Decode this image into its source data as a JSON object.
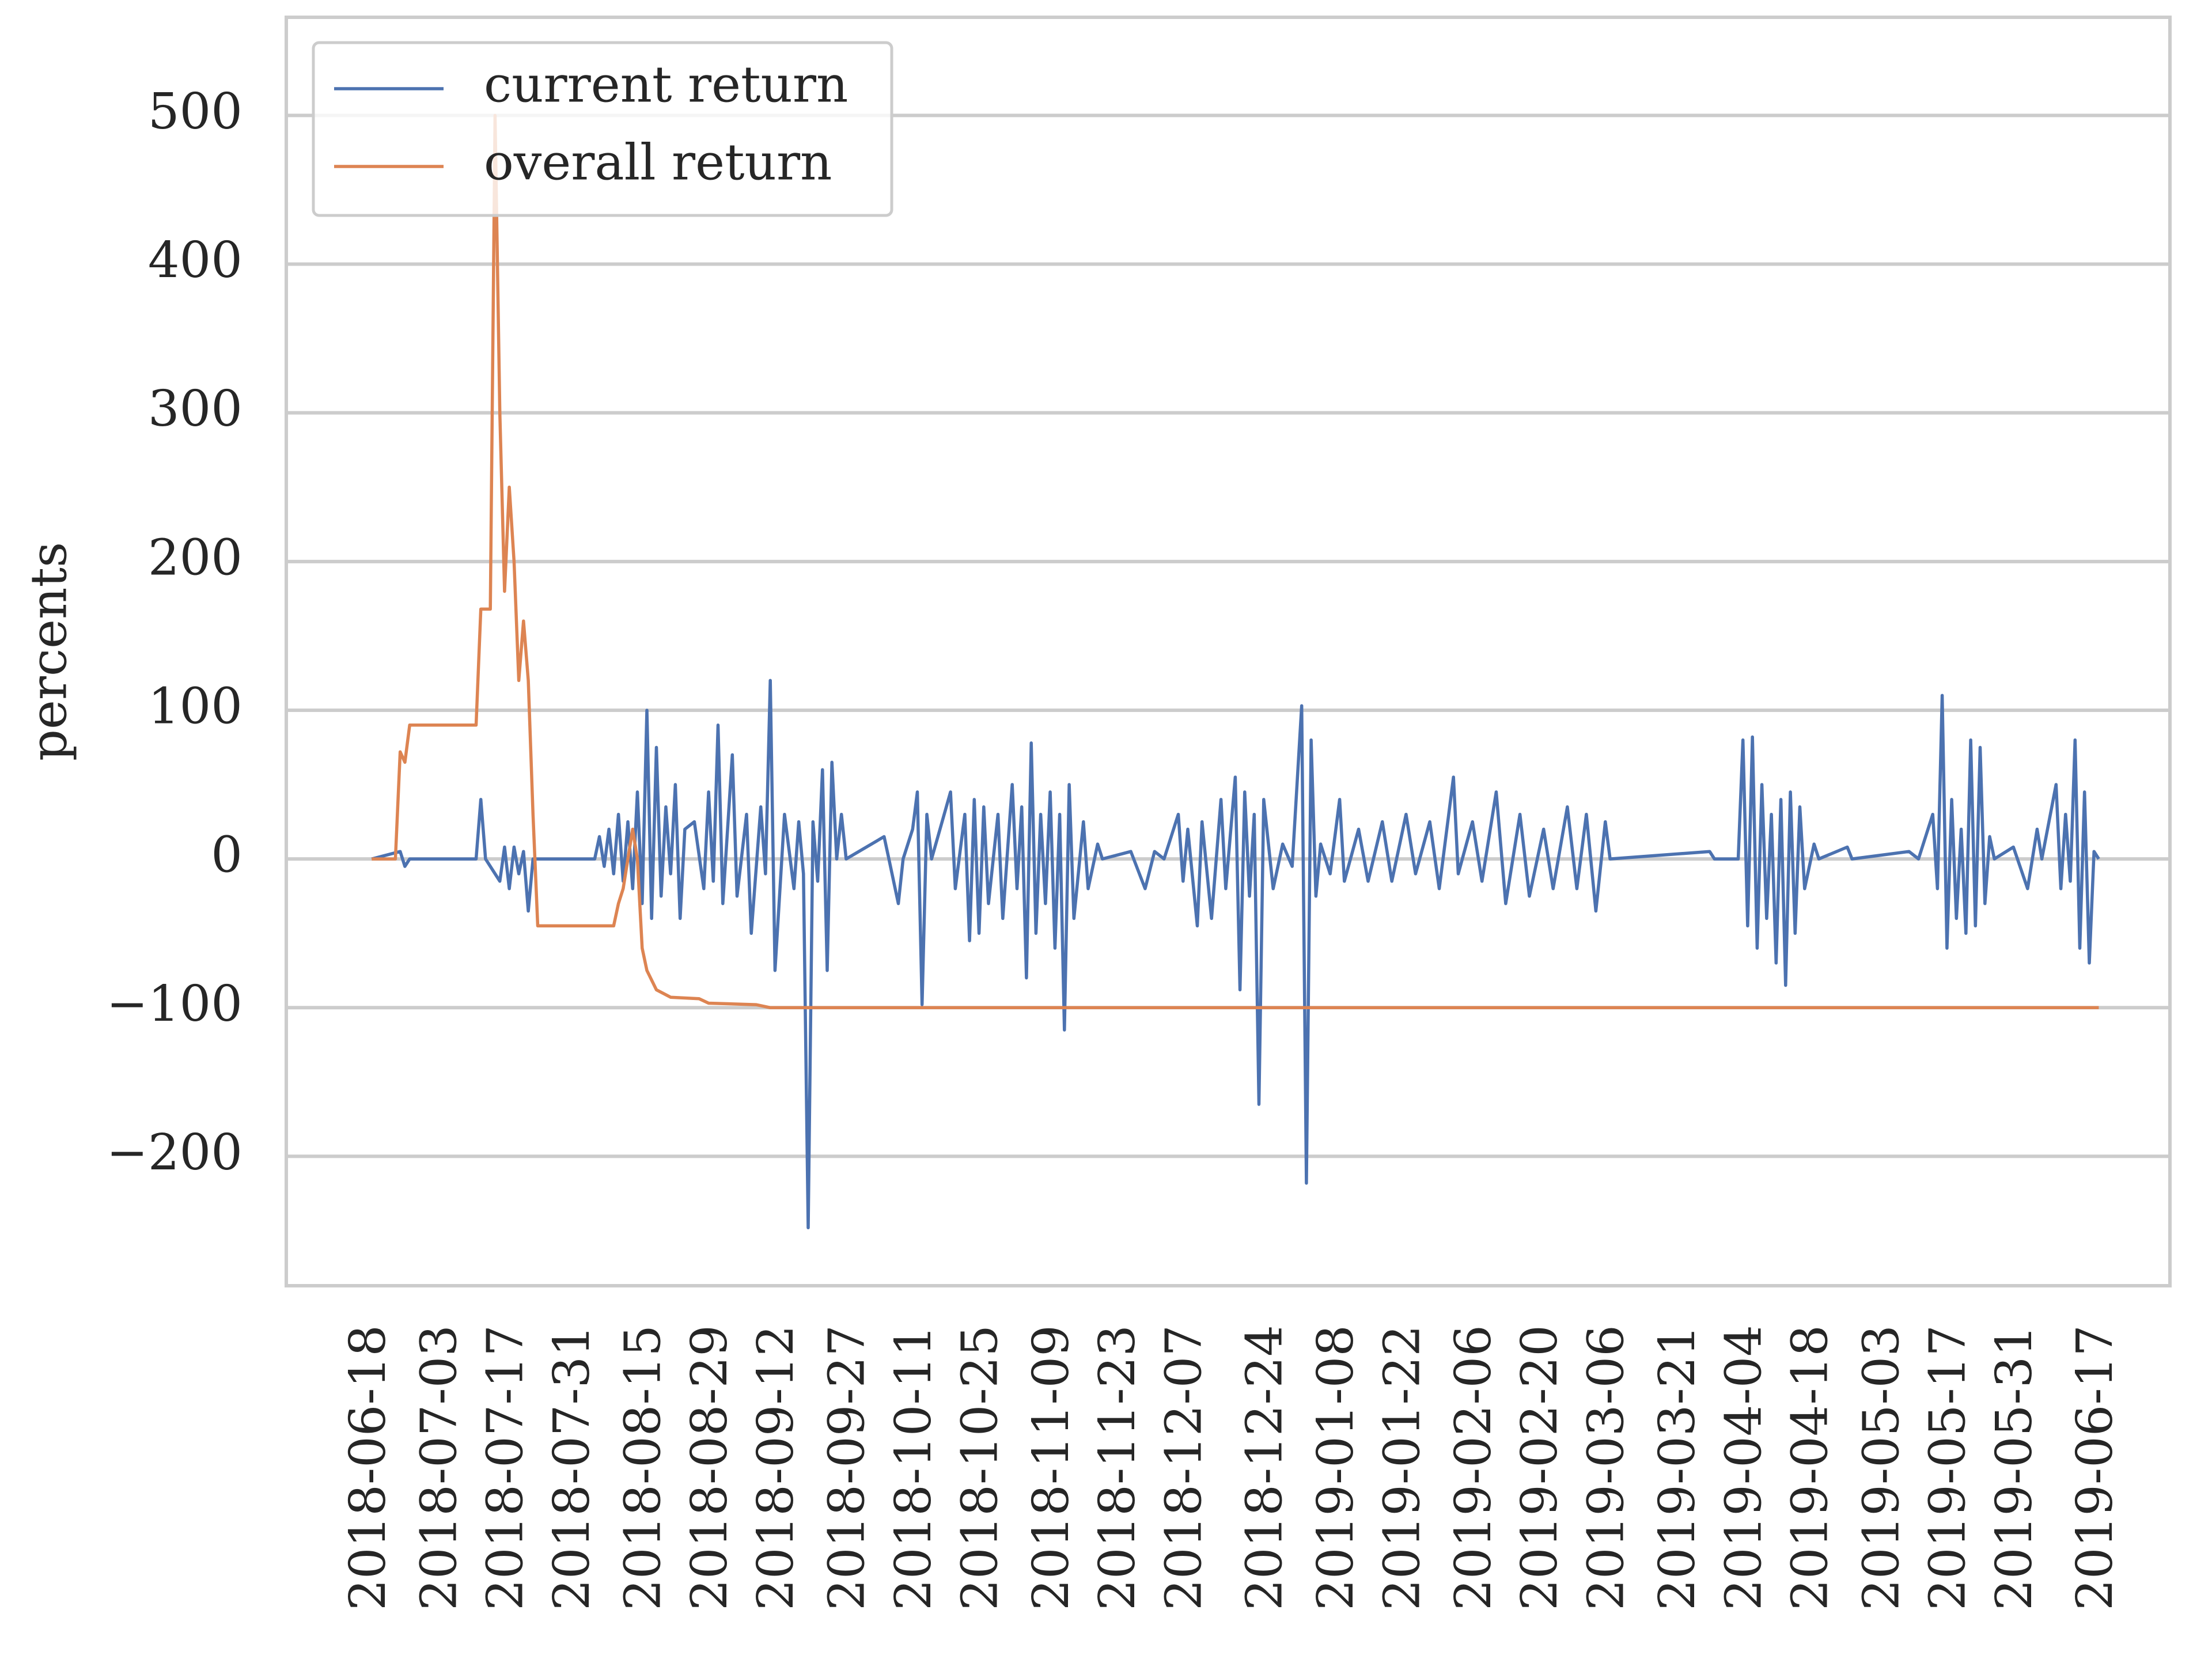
{
  "chart_data": {
    "type": "line",
    "ylabel": "percents",
    "legend": "upper left",
    "grid": "y",
    "xlim": [
      "2018-05-31",
      "2019-07-02"
    ],
    "ylim": [
      -287,
      566
    ],
    "yticks": [
      {
        "value": -200,
        "label": "−200"
      },
      {
        "value": -100,
        "label": "−100"
      },
      0,
      100,
      200,
      300,
      400,
      500
    ],
    "xticks": [
      "2018-06-18",
      "2018-07-03",
      "2018-07-17",
      "2018-07-31",
      "2018-08-15",
      "2018-08-29",
      "2018-09-12",
      "2018-09-27",
      "2018-10-11",
      "2018-10-25",
      "2018-11-09",
      "2018-11-23",
      "2018-12-07",
      "2018-12-24",
      "2019-01-08",
      "2019-01-22",
      "2019-02-06",
      "2019-02-20",
      "2019-03-06",
      "2019-03-21",
      "2019-04-04",
      "2019-04-18",
      "2019-05-03",
      "2019-05-17",
      "2019-05-31",
      "2019-06-17"
    ],
    "series": [
      {
        "name": "current return",
        "color": "#4c72b0",
        "x": [
          "2018-06-18",
          "2018-06-24",
          "2018-06-25",
          "2018-06-26",
          "2018-07-10",
          "2018-07-11",
          "2018-07-12",
          "2018-07-15",
          "2018-07-16",
          "2018-07-17",
          "2018-07-18",
          "2018-07-19",
          "2018-07-20",
          "2018-07-21",
          "2018-07-22",
          "2018-08-04",
          "2018-08-05",
          "2018-08-06",
          "2018-08-07",
          "2018-08-08",
          "2018-08-09",
          "2018-08-10",
          "2018-08-11",
          "2018-08-12",
          "2018-08-13",
          "2018-08-14",
          "2018-08-15",
          "2018-08-16",
          "2018-08-17",
          "2018-08-18",
          "2018-08-19",
          "2018-08-20",
          "2018-08-21",
          "2018-08-22",
          "2018-08-23",
          "2018-08-25",
          "2018-08-27",
          "2018-08-28",
          "2018-08-29",
          "2018-08-30",
          "2018-08-31",
          "2018-09-02",
          "2018-09-03",
          "2018-09-05",
          "2018-09-06",
          "2018-09-08",
          "2018-09-09",
          "2018-09-10",
          "2018-09-11",
          "2018-09-13",
          "2018-09-15",
          "2018-09-16",
          "2018-09-17",
          "2018-09-18",
          "2018-09-19",
          "2018-09-20",
          "2018-09-21",
          "2018-09-22",
          "2018-09-23",
          "2018-09-24",
          "2018-09-25",
          "2018-09-26",
          "2018-10-04",
          "2018-10-05",
          "2018-10-07",
          "2018-10-08",
          "2018-10-10",
          "2018-10-11",
          "2018-10-12",
          "2018-10-13",
          "2018-10-14",
          "2018-10-18",
          "2018-10-19",
          "2018-10-21",
          "2018-10-22",
          "2018-10-23",
          "2018-10-24",
          "2018-10-25",
          "2018-10-26",
          "2018-10-28",
          "2018-10-29",
          "2018-10-31",
          "2018-11-01",
          "2018-11-02",
          "2018-11-03",
          "2018-11-04",
          "2018-11-05",
          "2018-11-06",
          "2018-11-07",
          "2018-11-08",
          "2018-11-09",
          "2018-11-10",
          "2018-11-11",
          "2018-11-12",
          "2018-11-13",
          "2018-11-15",
          "2018-11-16",
          "2018-11-18",
          "2018-11-19",
          "2018-11-25",
          "2018-11-28",
          "2018-11-30",
          "2018-12-02",
          "2018-12-05",
          "2018-12-06",
          "2018-12-07",
          "2018-12-09",
          "2018-12-10",
          "2018-12-12",
          "2018-12-14",
          "2018-12-15",
          "2018-12-17",
          "2018-12-18",
          "2018-12-19",
          "2018-12-20",
          "2018-12-21",
          "2018-12-22",
          "2018-12-23",
          "2018-12-25",
          "2018-12-27",
          "2018-12-29",
          "2018-12-31",
          "2019-01-01",
          "2019-01-02",
          "2019-01-03",
          "2019-01-04",
          "2019-01-06",
          "2019-01-08",
          "2019-01-09",
          "2019-01-12",
          "2019-01-14",
          "2019-01-17",
          "2019-01-19",
          "2019-01-22",
          "2019-01-24",
          "2019-01-27",
          "2019-01-29",
          "2019-02-01",
          "2019-02-02",
          "2019-02-05",
          "2019-02-07",
          "2019-02-10",
          "2019-02-12",
          "2019-02-15",
          "2019-02-17",
          "2019-02-20",
          "2019-02-22",
          "2019-02-25",
          "2019-02-27",
          "2019-03-01",
          "2019-03-03",
          "2019-03-05",
          "2019-03-06",
          "2019-03-27",
          "2019-03-28",
          "2019-04-02",
          "2019-04-03",
          "2019-04-04",
          "2019-04-05",
          "2019-04-06",
          "2019-04-07",
          "2019-04-08",
          "2019-04-09",
          "2019-04-10",
          "2019-04-11",
          "2019-04-12",
          "2019-04-13",
          "2019-04-14",
          "2019-04-15",
          "2019-04-16",
          "2019-04-18",
          "2019-04-19",
          "2019-04-25",
          "2019-04-26",
          "2019-05-08",
          "2019-05-10",
          "2019-05-13",
          "2019-05-14",
          "2019-05-15",
          "2019-05-16",
          "2019-05-17",
          "2019-05-18",
          "2019-05-19",
          "2019-05-20",
          "2019-05-21",
          "2019-05-22",
          "2019-05-23",
          "2019-05-24",
          "2019-05-25",
          "2019-05-26",
          "2019-05-30",
          "2019-06-02",
          "2019-06-04",
          "2019-06-05",
          "2019-06-08",
          "2019-06-09",
          "2019-06-10",
          "2019-06-11",
          "2019-06-12",
          "2019-06-13",
          "2019-06-14",
          "2019-06-15",
          "2019-06-16",
          "2019-06-17"
        ],
        "values": [
          0,
          5,
          -5,
          0,
          0,
          40,
          0,
          -15,
          8,
          -20,
          8,
          -10,
          5,
          -35,
          0,
          0,
          15,
          -5,
          20,
          -10,
          30,
          -15,
          25,
          -20,
          45,
          -30,
          100,
          -40,
          75,
          -25,
          35,
          -10,
          50,
          -40,
          20,
          25,
          -20,
          45,
          -15,
          90,
          -30,
          70,
          -25,
          30,
          -50,
          35,
          -10,
          120,
          -75,
          30,
          -20,
          25,
          -10,
          -248,
          25,
          -15,
          60,
          -75,
          65,
          0,
          30,
          0,
          15,
          0,
          -30,
          0,
          20,
          45,
          -98,
          30,
          0,
          45,
          -20,
          30,
          -55,
          40,
          -50,
          35,
          -30,
          30,
          -40,
          50,
          -20,
          35,
          -80,
          78,
          -50,
          30,
          -30,
          45,
          -60,
          30,
          -115,
          50,
          -40,
          25,
          -20,
          10,
          0,
          5,
          -20,
          5,
          0,
          30,
          -15,
          20,
          -45,
          25,
          -40,
          40,
          -20,
          55,
          -88,
          45,
          -25,
          30,
          -165,
          40,
          -20,
          10,
          -5,
          103,
          -218,
          80,
          -25,
          10,
          -10,
          40,
          -15,
          20,
          -15,
          25,
          -15,
          30,
          -10,
          25,
          -20,
          55,
          -10,
          25,
          -15,
          45,
          -30,
          30,
          -25,
          20,
          -20,
          35,
          -20,
          30,
          -35,
          25,
          0,
          5,
          0,
          0,
          80,
          -45,
          82,
          -60,
          50,
          -40,
          30,
          -70,
          40,
          -85,
          45,
          -50,
          35,
          -20,
          10,
          0,
          8,
          0,
          5,
          0,
          30,
          -20,
          110,
          -60,
          40,
          -40,
          20,
          -50,
          80,
          -45,
          75,
          -30,
          15,
          0,
          8,
          -20,
          20,
          0,
          50,
          -20,
          30,
          -15,
          80,
          -60,
          45,
          -70,
          5,
          0
        ]
      },
      {
        "name": "overall return",
        "color": "#dd8452",
        "x": [
          "2018-06-18",
          "2018-06-23",
          "2018-06-24",
          "2018-06-25",
          "2018-06-26",
          "2018-07-10",
          "2018-07-11",
          "2018-07-13",
          "2018-07-14",
          "2018-07-15",
          "2018-07-16",
          "2018-07-17",
          "2018-07-18",
          "2018-07-19",
          "2018-07-20",
          "2018-07-21",
          "2018-07-22",
          "2018-07-23",
          "2018-08-08",
          "2018-08-09",
          "2018-08-10",
          "2018-08-11",
          "2018-08-12",
          "2018-08-13",
          "2018-08-14",
          "2018-08-15",
          "2018-08-17",
          "2018-08-20",
          "2018-08-26",
          "2018-08-28",
          "2018-09-07",
          "2018-09-10",
          "2019-06-17"
        ],
        "values": [
          0,
          0,
          72,
          65,
          90,
          90,
          168,
          168,
          500,
          300,
          180,
          250,
          200,
          120,
          160,
          120,
          30,
          -45,
          -45,
          -30,
          -20,
          0,
          20,
          0,
          -60,
          -75,
          -88,
          -93,
          -94,
          -97,
          -98,
          -100,
          -100
        ]
      }
    ]
  }
}
